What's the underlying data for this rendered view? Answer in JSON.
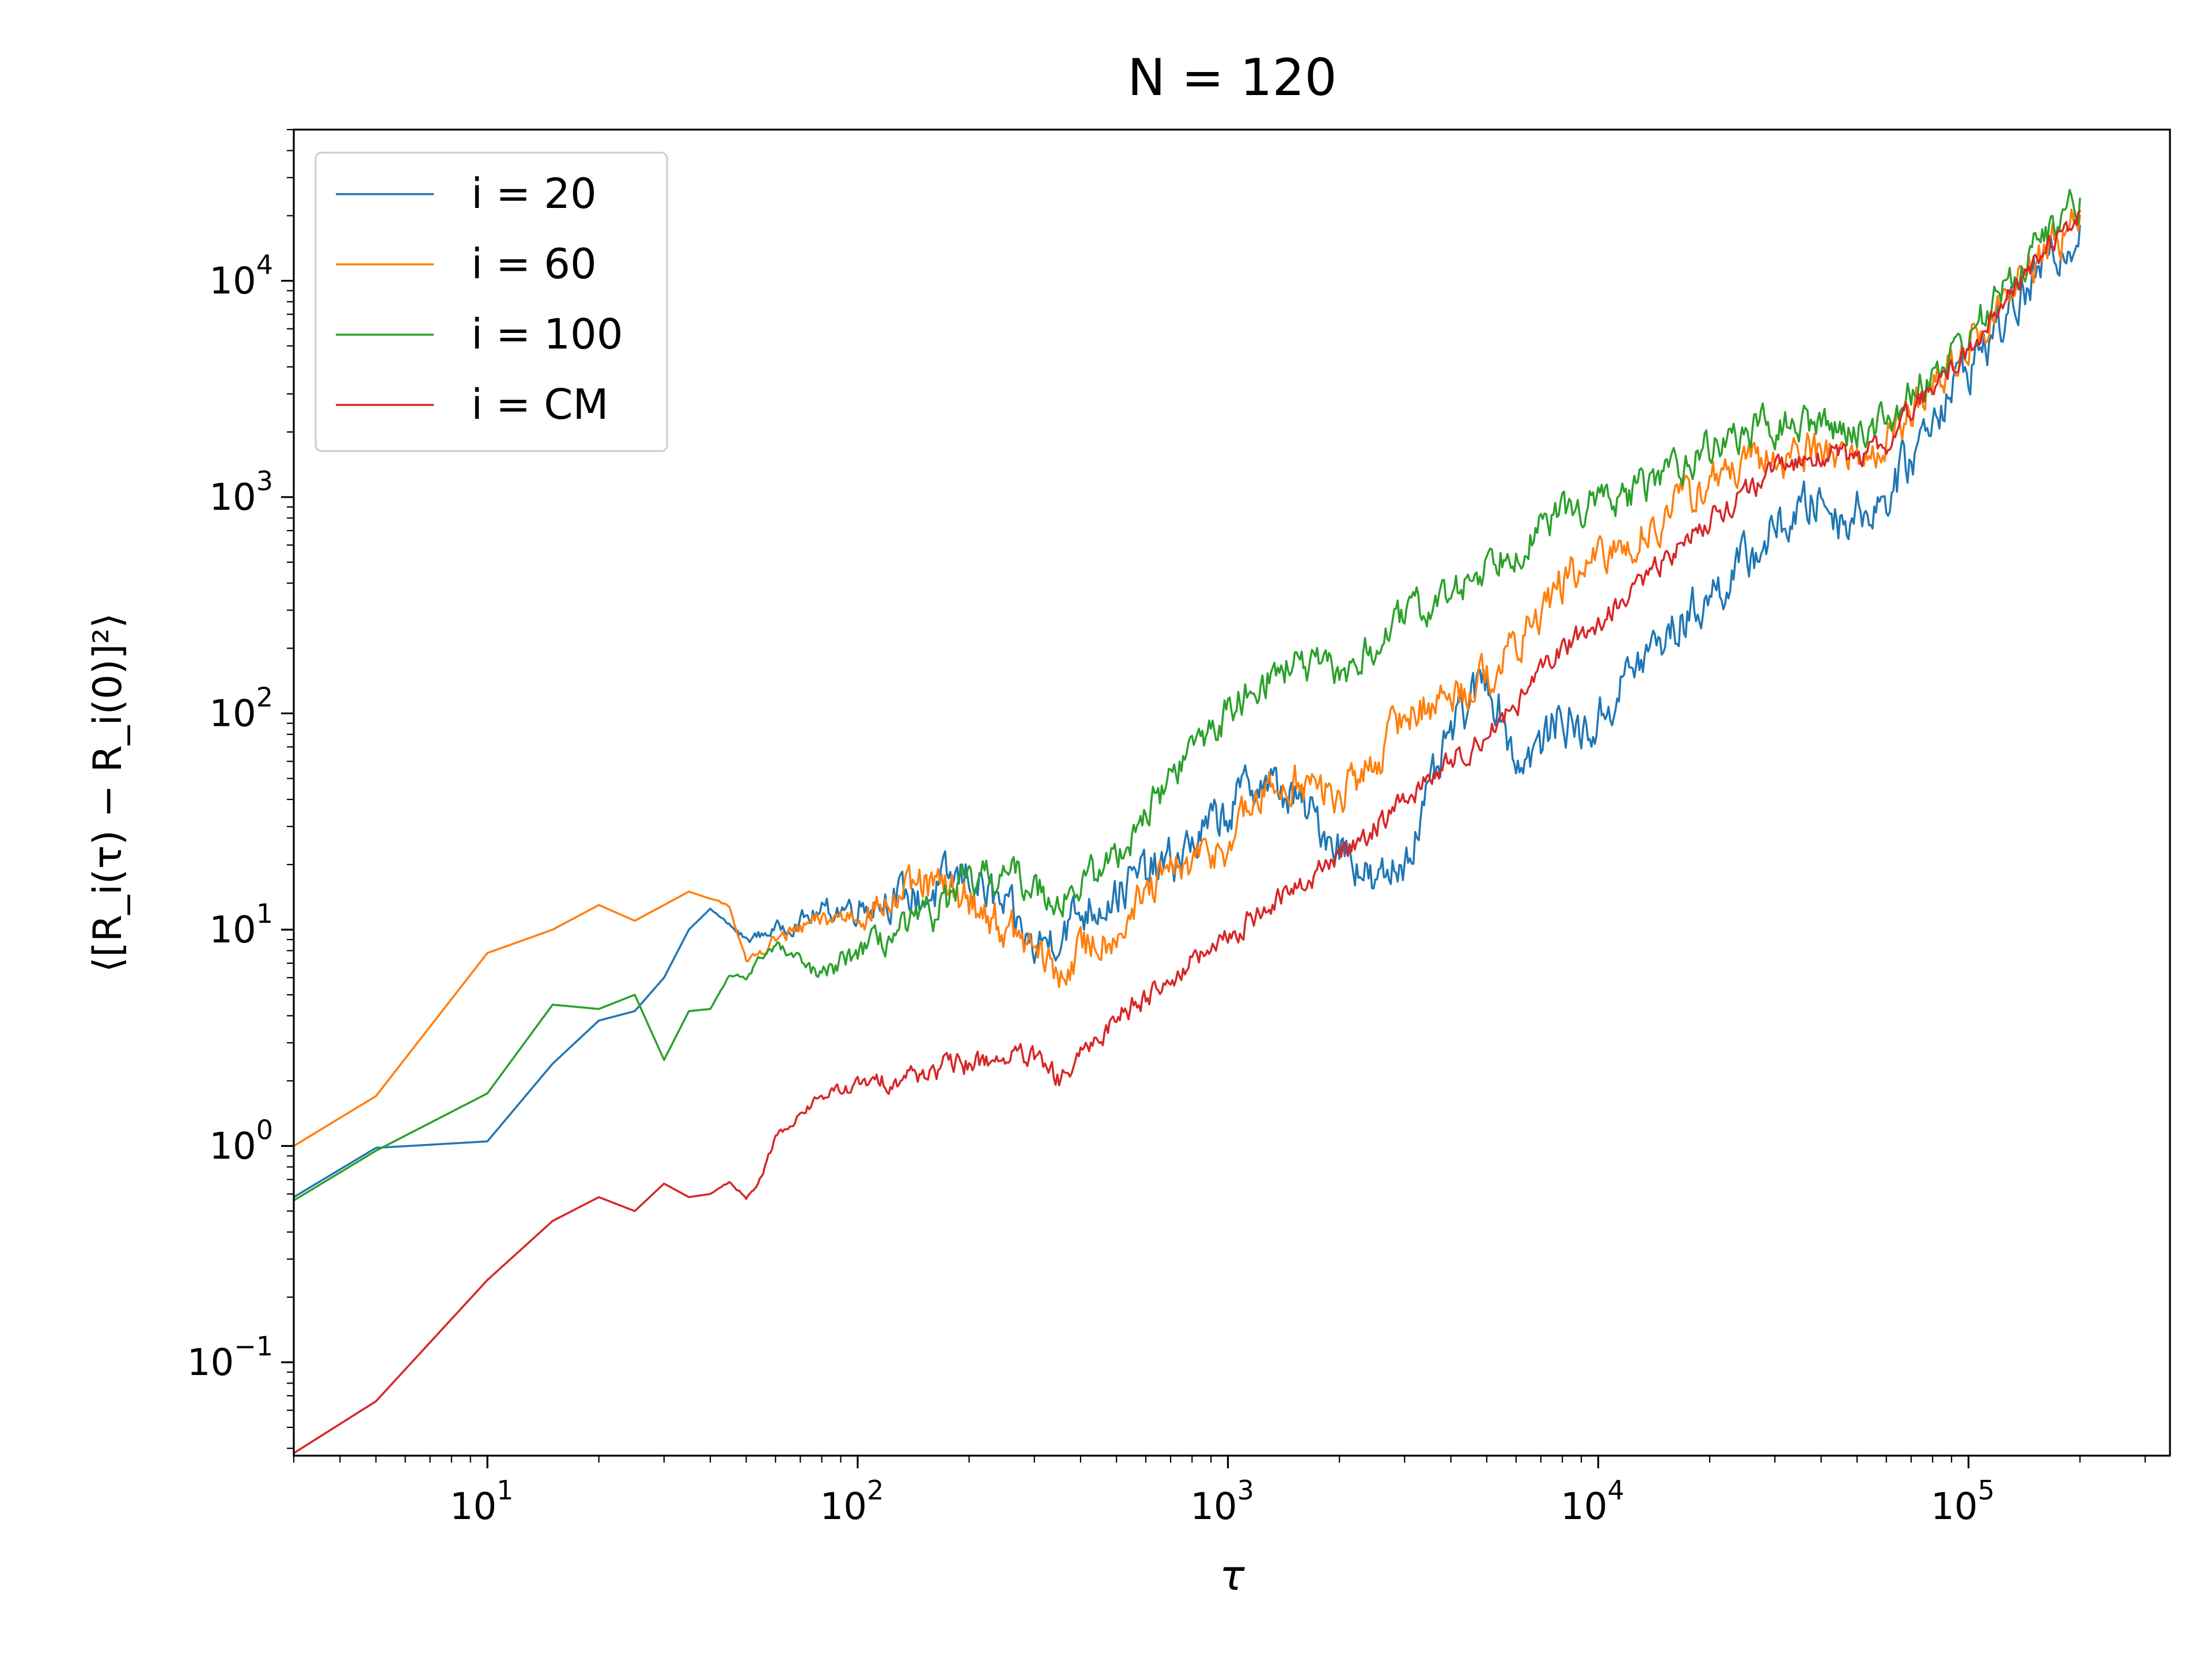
{
  "chart_data": {
    "type": "line",
    "title": "N = 120",
    "xlabel": "τ",
    "ylabel": "⟨[R_i(τ) − R_i(0)]²⟩",
    "xscale": "log",
    "yscale": "log",
    "xlim": [
      3,
      350000
    ],
    "ylim": [
      0.037,
      50000
    ],
    "grid": false,
    "legend_position": "top-left",
    "x_ticks": [
      {
        "value": 10,
        "base": "10",
        "exp": "1"
      },
      {
        "value": 100,
        "base": "10",
        "exp": "2"
      },
      {
        "value": 1000,
        "base": "10",
        "exp": "3"
      },
      {
        "value": 10000,
        "base": "10",
        "exp": "4"
      },
      {
        "value": 100000,
        "base": "10",
        "exp": "5"
      }
    ],
    "y_ticks": [
      {
        "value": 0.1,
        "base": "10",
        "exp": "−1"
      },
      {
        "value": 1,
        "base": "10",
        "exp": "0"
      },
      {
        "value": 10,
        "base": "10",
        "exp": "1"
      },
      {
        "value": 100,
        "base": "10",
        "exp": "2"
      },
      {
        "value": 1000,
        "base": "10",
        "exp": "3"
      },
      {
        "value": 10000,
        "base": "10",
        "exp": "4"
      }
    ],
    "series": [
      {
        "name": "i = 20",
        "color": "#1f77b4",
        "noise": 0.09,
        "points": [
          [
            3,
            0.58
          ],
          [
            5,
            0.98
          ],
          [
            10,
            1.05
          ],
          [
            15,
            2.4
          ],
          [
            20,
            3.8
          ],
          [
            25,
            4.2
          ],
          [
            30,
            6
          ],
          [
            35,
            10
          ],
          [
            40,
            12.5
          ],
          [
            50,
            9
          ],
          [
            60,
            10
          ],
          [
            70,
            11
          ],
          [
            80,
            12
          ],
          [
            100,
            13
          ],
          [
            120,
            14
          ],
          [
            150,
            14
          ],
          [
            200,
            18
          ],
          [
            250,
            12
          ],
          [
            300,
            8
          ],
          [
            350,
            10
          ],
          [
            400,
            12
          ],
          [
            500,
            15
          ],
          [
            600,
            18
          ],
          [
            700,
            20
          ],
          [
            800,
            25
          ],
          [
            1000,
            35
          ],
          [
            1200,
            50
          ],
          [
            1500,
            40
          ],
          [
            1800,
            30
          ],
          [
            2000,
            25
          ],
          [
            2300,
            20
          ],
          [
            2500,
            15
          ],
          [
            3000,
            22
          ],
          [
            3500,
            40
          ],
          [
            4000,
            80
          ],
          [
            5000,
            150
          ],
          [
            5500,
            100
          ],
          [
            6000,
            60
          ],
          [
            7000,
            70
          ],
          [
            8000,
            100
          ],
          [
            9000,
            80
          ],
          [
            10000,
            90
          ],
          [
            12000,
            150
          ],
          [
            15000,
            220
          ],
          [
            20000,
            350
          ],
          [
            25000,
            500
          ],
          [
            30000,
            700
          ],
          [
            40000,
            1000
          ],
          [
            45000,
            800
          ],
          [
            50000,
            850
          ],
          [
            60000,
            1000
          ],
          [
            70000,
            1500
          ],
          [
            80000,
            2500
          ],
          [
            100000,
            4000
          ],
          [
            150000,
            10000
          ],
          [
            200000,
            18000
          ]
        ]
      },
      {
        "name": "i = 60",
        "color": "#ff7f0e",
        "noise": 0.08,
        "points": [
          [
            3,
            1.0
          ],
          [
            5,
            1.7
          ],
          [
            10,
            7.8
          ],
          [
            15,
            10
          ],
          [
            20,
            13
          ],
          [
            25,
            11
          ],
          [
            30,
            13
          ],
          [
            35,
            15
          ],
          [
            45,
            13
          ],
          [
            50,
            7
          ],
          [
            60,
            9
          ],
          [
            70,
            10
          ],
          [
            80,
            11
          ],
          [
            100,
            12
          ],
          [
            120,
            13
          ],
          [
            150,
            16
          ],
          [
            200,
            14
          ],
          [
            250,
            10
          ],
          [
            300,
            8
          ],
          [
            350,
            6
          ],
          [
            400,
            8
          ],
          [
            450,
            9
          ],
          [
            500,
            10
          ],
          [
            600,
            14
          ],
          [
            700,
            18
          ],
          [
            800,
            20
          ],
          [
            1000,
            25
          ],
          [
            1200,
            40
          ],
          [
            1500,
            50
          ],
          [
            2000,
            40
          ],
          [
            2500,
            60
          ],
          [
            3000,
            100
          ],
          [
            4000,
            120
          ],
          [
            5000,
            150
          ],
          [
            6000,
            200
          ],
          [
            7000,
            300
          ],
          [
            8000,
            400
          ],
          [
            10000,
            500
          ],
          [
            12000,
            600
          ],
          [
            15000,
            800
          ],
          [
            20000,
            1200
          ],
          [
            30000,
            1500
          ],
          [
            40000,
            1700
          ],
          [
            50000,
            1500
          ],
          [
            60000,
            1800
          ],
          [
            70000,
            2500
          ],
          [
            100000,
            5000
          ],
          [
            150000,
            12000
          ],
          [
            200000,
            20000
          ]
        ]
      },
      {
        "name": "i = 100",
        "color": "#2ca02c",
        "noise": 0.07,
        "points": [
          [
            3,
            0.56
          ],
          [
            5,
            0.95
          ],
          [
            10,
            1.75
          ],
          [
            15,
            4.5
          ],
          [
            20,
            4.3
          ],
          [
            25,
            5
          ],
          [
            30,
            2.5
          ],
          [
            35,
            4.2
          ],
          [
            40,
            4.3
          ],
          [
            45,
            6.1
          ],
          [
            50,
            6
          ],
          [
            55,
            7.5
          ],
          [
            60,
            8.5
          ],
          [
            70,
            7
          ],
          [
            80,
            6
          ],
          [
            100,
            8
          ],
          [
            120,
            9
          ],
          [
            150,
            11
          ],
          [
            200,
            16
          ],
          [
            250,
            18
          ],
          [
            300,
            16
          ],
          [
            350,
            14
          ],
          [
            400,
            16
          ],
          [
            500,
            22
          ],
          [
            600,
            35
          ],
          [
            700,
            50
          ],
          [
            800,
            70
          ],
          [
            1000,
            100
          ],
          [
            1200,
            140
          ],
          [
            1500,
            170
          ],
          [
            2000,
            150
          ],
          [
            2500,
            200
          ],
          [
            3000,
            280
          ],
          [
            4000,
            350
          ],
          [
            5000,
            500
          ],
          [
            6000,
            600
          ],
          [
            7000,
            700
          ],
          [
            8000,
            850
          ],
          [
            10000,
            950
          ],
          [
            12000,
            1000
          ],
          [
            15000,
            1300
          ],
          [
            20000,
            1700
          ],
          [
            25000,
            2000
          ],
          [
            30000,
            2100
          ],
          [
            40000,
            2200
          ],
          [
            50000,
            2000
          ],
          [
            60000,
            2300
          ],
          [
            70000,
            3000
          ],
          [
            100000,
            5500
          ],
          [
            150000,
            14000
          ],
          [
            200000,
            24000
          ]
        ]
      },
      {
        "name": "i = CM",
        "color": "#d62728",
        "noise": 0.045,
        "points": [
          [
            3,
            0.038
          ],
          [
            5,
            0.066
          ],
          [
            10,
            0.24
          ],
          [
            15,
            0.45
          ],
          [
            20,
            0.58
          ],
          [
            25,
            0.5
          ],
          [
            30,
            0.67
          ],
          [
            35,
            0.58
          ],
          [
            40,
            0.6
          ],
          [
            45,
            0.68
          ],
          [
            50,
            0.58
          ],
          [
            55,
            0.72
          ],
          [
            60,
            1.1
          ],
          [
            70,
            1.4
          ],
          [
            80,
            1.7
          ],
          [
            100,
            1.9
          ],
          [
            120,
            2.0
          ],
          [
            150,
            2.2
          ],
          [
            200,
            2.4
          ],
          [
            250,
            2.6
          ],
          [
            300,
            2.5
          ],
          [
            350,
            2.0
          ],
          [
            400,
            2.5
          ],
          [
            500,
            4
          ],
          [
            600,
            5
          ],
          [
            700,
            6
          ],
          [
            800,
            7
          ],
          [
            1000,
            9
          ],
          [
            1200,
            12
          ],
          [
            1500,
            15
          ],
          [
            2000,
            22
          ],
          [
            2500,
            30
          ],
          [
            3000,
            40
          ],
          [
            4000,
            60
          ],
          [
            5000,
            80
          ],
          [
            6000,
            110
          ],
          [
            7000,
            150
          ],
          [
            8000,
            200
          ],
          [
            10000,
            260
          ],
          [
            12000,
            350
          ],
          [
            15000,
            500
          ],
          [
            20000,
            800
          ],
          [
            30000,
            1300
          ],
          [
            40000,
            1600
          ],
          [
            50000,
            1500
          ],
          [
            60000,
            1800
          ],
          [
            70000,
            2500
          ],
          [
            100000,
            4800
          ],
          [
            150000,
            12000
          ],
          [
            200000,
            21000
          ]
        ]
      }
    ]
  }
}
